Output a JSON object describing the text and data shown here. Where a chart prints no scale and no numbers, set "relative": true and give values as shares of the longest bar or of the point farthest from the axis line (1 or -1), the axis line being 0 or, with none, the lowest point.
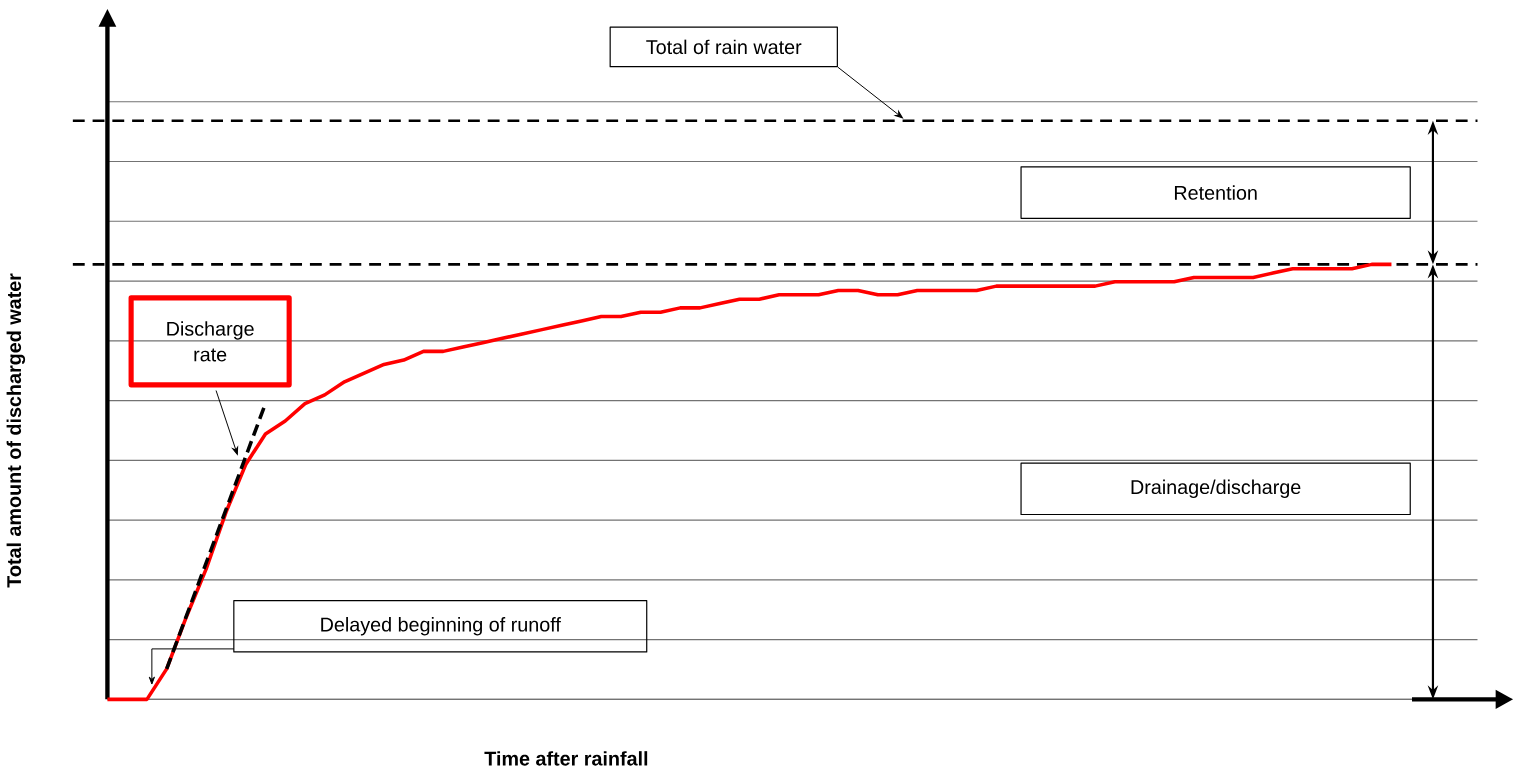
{
  "chart_data": {
    "type": "line",
    "relative": true,
    "xlabel": "Time after rainfall",
    "ylabel": "Total amount of discharged water",
    "categories": [
      null,
      null,
      null,
      null,
      null,
      null,
      null,
      null,
      null,
      null,
      null,
      null,
      null,
      null,
      null,
      null,
      null,
      null,
      null,
      null,
      null,
      null,
      null,
      null,
      null,
      null,
      null,
      null,
      null,
      null,
      null,
      null,
      null,
      null,
      null,
      null,
      null,
      null,
      null,
      null,
      null,
      null,
      null,
      null,
      null,
      null,
      null,
      null,
      null,
      null,
      null,
      null,
      null,
      null,
      null,
      null,
      null,
      null,
      null,
      null,
      null,
      null,
      null,
      null,
      null,
      null
    ],
    "grid": "y",
    "marker": "none",
    "series": [
      {
        "color": "#ff0000",
        "values": [
          0,
          0,
          0,
          0.07,
          0.19,
          0.3,
          0.43,
          0.54,
          0.61,
          0.64,
          0.68,
          0.7,
          0.73,
          0.75,
          0.77,
          0.78,
          0.8,
          0.8,
          0.81,
          0.82,
          0.83,
          0.84,
          0.85,
          0.86,
          0.87,
          0.88,
          0.88,
          0.89,
          0.89,
          0.9,
          0.9,
          0.91,
          0.92,
          0.92,
          0.93,
          0.93,
          0.93,
          0.94,
          0.94,
          0.93,
          0.93,
          0.94,
          0.94,
          0.94,
          0.94,
          0.95,
          0.95,
          0.95,
          0.95,
          0.95,
          0.95,
          0.96,
          0.96,
          0.96,
          0.96,
          0.97,
          0.97,
          0.97,
          0.97,
          0.98,
          0.99,
          0.99,
          0.99,
          0.99,
          1.0,
          1.0
        ]
      },
      {
        "type": "line",
        "color": "#000000",
        "line_style": "dashed",
        "values": [
          null,
          null,
          null,
          0.07,
          null,
          null,
          null,
          null,
          0.68,
          null,
          null,
          null,
          null,
          null,
          null,
          null,
          null,
          null,
          null,
          null,
          null,
          null,
          null,
          null,
          null,
          null,
          null,
          null,
          null,
          null,
          null,
          null,
          null,
          null,
          null,
          null,
          null,
          null,
          null,
          null,
          null,
          null,
          null,
          null,
          null,
          null,
          null,
          null,
          null,
          null,
          null,
          null,
          null,
          null,
          null,
          null,
          null,
          null,
          null,
          null,
          null,
          null,
          null,
          null,
          null,
          null
        ]
      }
    ],
    "ref_lines": [
      {
        "axis": "y",
        "value": 1.33,
        "label": "Total of rain water",
        "color": "#000000",
        "line_style": "dashed"
      },
      {
        "axis": "y",
        "value": 1.0,
        "color": "#000000",
        "line_style": "dashed"
      }
    ],
    "annotations": [
      "Discharge rate",
      "Delayed beginning of runoff",
      "Retention",
      "Drainage/discharge"
    ]
  }
}
